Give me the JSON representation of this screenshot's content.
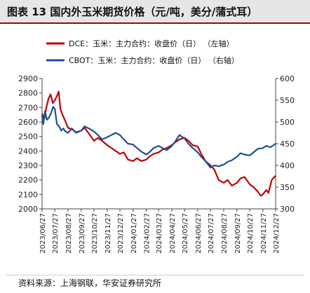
{
  "header": {
    "title": "图表 13 国内外玉米期货价格（元/吨，美分/蒲式耳）"
  },
  "footer": {
    "source": "资料来源：上海钢联，华安证券研究所"
  },
  "colors": {
    "dce": "#c00000",
    "cbot": "#1f4e96",
    "header_bg": "#e6e6e6",
    "header_rule": "#8a0f14"
  },
  "chart_data": {
    "type": "line",
    "title": "",
    "grid": false,
    "legend_position": "top-left",
    "x_type": "date",
    "x_ticks": [
      "2023/06/27",
      "2023/07/27",
      "2023/08/27",
      "2023/09/27",
      "2023/10/27",
      "2023/11/27",
      "2023/12/27",
      "2024/01/27",
      "2024/02/27",
      "2024/03/27",
      "2024/04/27",
      "2024/05/27",
      "2024/06/27",
      "2024/07/27",
      "2024/08/27",
      "2024/09/27",
      "2024/10/27",
      "2024/11/27",
      "2024/12/27"
    ],
    "x_range": [
      "2023/06/27",
      "2024/12/27"
    ],
    "y_left": {
      "min": 2000,
      "max": 2900,
      "ticks": [
        2000,
        2100,
        2200,
        2300,
        2400,
        2500,
        2600,
        2700,
        2800,
        2900
      ]
    },
    "y_right": {
      "min": 300,
      "max": 600,
      "ticks": [
        300,
        350,
        400,
        450,
        500,
        550,
        600
      ]
    },
    "series": [
      {
        "name": "DCE：玉米：主力合约：收盘价（日）",
        "axis_label": "（左轴）",
        "axis": "left",
        "color": "#c00000",
        "points": [
          [
            "2023/06/27",
            2660
          ],
          [
            "2023/07/02",
            2620
          ],
          [
            "2023/07/07",
            2700
          ],
          [
            "2023/07/12",
            2760
          ],
          [
            "2023/07/17",
            2790
          ],
          [
            "2023/07/22",
            2730
          ],
          [
            "2023/07/27",
            2750
          ],
          [
            "2023/08/01",
            2780
          ],
          [
            "2023/08/05",
            2810
          ],
          [
            "2023/08/09",
            2690
          ],
          [
            "2023/08/14",
            2650
          ],
          [
            "2023/08/20",
            2610
          ],
          [
            "2023/08/27",
            2560
          ],
          [
            "2023/09/05",
            2550
          ],
          [
            "2023/09/15",
            2530
          ],
          [
            "2023/09/27",
            2540
          ],
          [
            "2023/10/05",
            2560
          ],
          [
            "2023/10/15",
            2520
          ],
          [
            "2023/10/27",
            2470
          ],
          [
            "2023/11/05",
            2490
          ],
          [
            "2023/11/15",
            2470
          ],
          [
            "2023/11/27",
            2440
          ],
          [
            "2023/12/07",
            2420
          ],
          [
            "2023/12/17",
            2400
          ],
          [
            "2023/12/27",
            2380
          ],
          [
            "2024/01/05",
            2390
          ],
          [
            "2024/01/15",
            2340
          ],
          [
            "2024/01/27",
            2330
          ],
          [
            "2024/02/05",
            2350
          ],
          [
            "2024/02/15",
            2330
          ],
          [
            "2024/02/27",
            2340
          ],
          [
            "2024/03/05",
            2360
          ],
          [
            "2024/03/15",
            2380
          ],
          [
            "2024/03/27",
            2390
          ],
          [
            "2024/04/05",
            2410
          ],
          [
            "2024/04/15",
            2420
          ],
          [
            "2024/04/27",
            2440
          ],
          [
            "2024/05/05",
            2460
          ],
          [
            "2024/05/15",
            2480
          ],
          [
            "2024/05/27",
            2490
          ],
          [
            "2024/06/05",
            2470
          ],
          [
            "2024/06/15",
            2440
          ],
          [
            "2024/06/27",
            2430
          ],
          [
            "2024/07/05",
            2380
          ],
          [
            "2024/07/15",
            2330
          ],
          [
            "2024/07/27",
            2300
          ],
          [
            "2024/08/05",
            2270
          ],
          [
            "2024/08/15",
            2200
          ],
          [
            "2024/08/27",
            2180
          ],
          [
            "2024/09/05",
            2200
          ],
          [
            "2024/09/15",
            2160
          ],
          [
            "2024/09/27",
            2180
          ],
          [
            "2024/10/05",
            2210
          ],
          [
            "2024/10/15",
            2220
          ],
          [
            "2024/10/27",
            2170
          ],
          [
            "2024/11/05",
            2150
          ],
          [
            "2024/11/15",
            2120
          ],
          [
            "2024/11/22",
            2090
          ],
          [
            "2024/11/27",
            2100
          ],
          [
            "2024/12/05",
            2130
          ],
          [
            "2024/12/10",
            2110
          ],
          [
            "2024/12/18",
            2200
          ],
          [
            "2024/12/27",
            2230
          ]
        ]
      },
      {
        "name": "CBOT：玉米：主力合约：收盘价（日）",
        "axis_label": "（右轴）",
        "axis": "right",
        "color": "#1f4e96",
        "points": [
          [
            "2023/06/27",
            515
          ],
          [
            "2023/06/30",
            495
          ],
          [
            "2023/07/04",
            525
          ],
          [
            "2023/07/08",
            505
          ],
          [
            "2023/07/13",
            510
          ],
          [
            "2023/07/18",
            520
          ],
          [
            "2023/07/23",
            535
          ],
          [
            "2023/07/27",
            530
          ],
          [
            "2023/08/01",
            495
          ],
          [
            "2023/08/06",
            490
          ],
          [
            "2023/08/11",
            480
          ],
          [
            "2023/08/16",
            485
          ],
          [
            "2023/08/21",
            478
          ],
          [
            "2023/08/27",
            475
          ],
          [
            "2023/09/05",
            485
          ],
          [
            "2023/09/15",
            475
          ],
          [
            "2023/09/27",
            480
          ],
          [
            "2023/10/05",
            490
          ],
          [
            "2023/10/15",
            485
          ],
          [
            "2023/10/27",
            478
          ],
          [
            "2023/11/05",
            470
          ],
          [
            "2023/11/15",
            460
          ],
          [
            "2023/11/27",
            465
          ],
          [
            "2023/12/07",
            470
          ],
          [
            "2023/12/17",
            475
          ],
          [
            "2023/12/27",
            470
          ],
          [
            "2024/01/05",
            460
          ],
          [
            "2024/01/15",
            450
          ],
          [
            "2024/01/27",
            448
          ],
          [
            "2024/02/05",
            440
          ],
          [
            "2024/02/15",
            432
          ],
          [
            "2024/02/27",
            425
          ],
          [
            "2024/03/05",
            430
          ],
          [
            "2024/03/15",
            440
          ],
          [
            "2024/03/27",
            445
          ],
          [
            "2024/04/05",
            440
          ],
          [
            "2024/04/15",
            435
          ],
          [
            "2024/04/27",
            445
          ],
          [
            "2024/05/05",
            455
          ],
          [
            "2024/05/15",
            470
          ],
          [
            "2024/05/27",
            462
          ],
          [
            "2024/06/05",
            450
          ],
          [
            "2024/06/15",
            440
          ],
          [
            "2024/06/27",
            430
          ],
          [
            "2024/07/05",
            420
          ],
          [
            "2024/07/15",
            410
          ],
          [
            "2024/07/27",
            395
          ],
          [
            "2024/08/05",
            400
          ],
          [
            "2024/08/15",
            398
          ],
          [
            "2024/08/27",
            402
          ],
          [
            "2024/09/05",
            408
          ],
          [
            "2024/09/15",
            412
          ],
          [
            "2024/09/27",
            420
          ],
          [
            "2024/10/05",
            428
          ],
          [
            "2024/10/15",
            425
          ],
          [
            "2024/10/27",
            423
          ],
          [
            "2024/11/05",
            430
          ],
          [
            "2024/11/15",
            438
          ],
          [
            "2024/11/27",
            440
          ],
          [
            "2024/12/05",
            445
          ],
          [
            "2024/12/15",
            442
          ],
          [
            "2024/12/27",
            450
          ]
        ]
      }
    ]
  }
}
